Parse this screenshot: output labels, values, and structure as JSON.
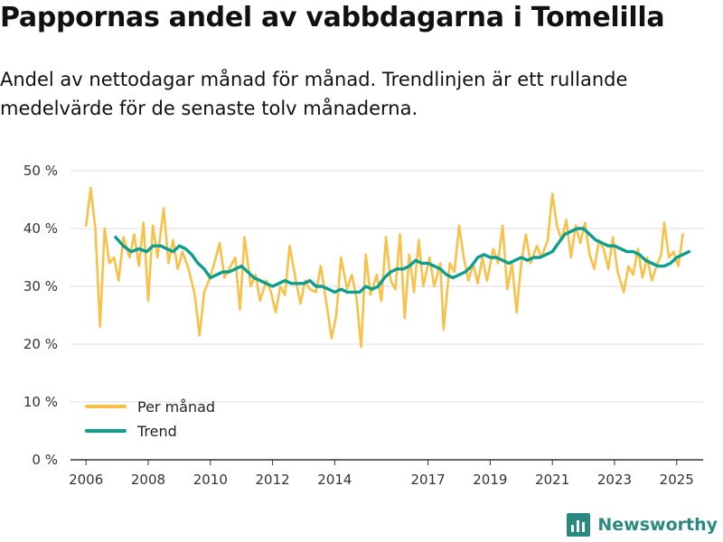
{
  "title": "Pappornas andel av vabbdagarna i Tomelilla",
  "subtitle": "Andel av nettodagar månad för månad. Trendlinjen är ett rullande medelvärde för de senaste tolv månaderna.",
  "brand": {
    "name": "Newsworthy",
    "icon": "bar-chart-logo-icon"
  },
  "colors": {
    "monthly": "#f8c14a",
    "trend": "#0e9e8e",
    "grid": "#dddddd",
    "axis": "#333333",
    "brand": "#2a8a80"
  },
  "chart_data": {
    "type": "line",
    "title": "Pappornas andel av vabbdagarna i Tomelilla",
    "xlabel": "",
    "ylabel": "",
    "xlim": [
      2005.5,
      2025.85
    ],
    "ylim": [
      0,
      50
    ],
    "x_ticks": [
      2006,
      2008,
      2010,
      2012,
      2014,
      2017,
      2019,
      2021,
      2023,
      2025
    ],
    "x_tick_labels": [
      "2006",
      "2008",
      "2010",
      "2012",
      "2014",
      "2017",
      "2019",
      "2021",
      "2023",
      "2025"
    ],
    "y_ticks": [
      0,
      10,
      20,
      30,
      40,
      50
    ],
    "y_tick_labels": [
      "0 %",
      "10 %",
      "20 %",
      "30 %",
      "40 %",
      "50 %"
    ],
    "legend_position": "bottom-left",
    "series": [
      {
        "name": "Per månad",
        "color": "#f8c14a",
        "points": [
          [
            2006.0,
            40.5
          ],
          [
            2006.15,
            47.0
          ],
          [
            2006.3,
            40.0
          ],
          [
            2006.45,
            23.0
          ],
          [
            2006.6,
            40.0
          ],
          [
            2006.75,
            34.0
          ],
          [
            2006.9,
            35.0
          ],
          [
            2007.05,
            31.0
          ],
          [
            2007.2,
            38.5
          ],
          [
            2007.4,
            35.0
          ],
          [
            2007.55,
            39.0
          ],
          [
            2007.7,
            33.5
          ],
          [
            2007.85,
            41.0
          ],
          [
            2008.0,
            27.5
          ],
          [
            2008.15,
            40.5
          ],
          [
            2008.3,
            35.0
          ],
          [
            2008.5,
            43.5
          ],
          [
            2008.65,
            34.0
          ],
          [
            2008.8,
            38.0
          ],
          [
            2008.95,
            33.0
          ],
          [
            2009.1,
            36.0
          ],
          [
            2009.3,
            33.0
          ],
          [
            2009.5,
            28.5
          ],
          [
            2009.65,
            21.5
          ],
          [
            2009.8,
            29.0
          ],
          [
            2009.95,
            31.0
          ],
          [
            2010.1,
            33.5
          ],
          [
            2010.3,
            37.5
          ],
          [
            2010.45,
            31.5
          ],
          [
            2010.6,
            33.0
          ],
          [
            2010.8,
            35.0
          ],
          [
            2010.95,
            26.0
          ],
          [
            2011.1,
            38.5
          ],
          [
            2011.3,
            30.0
          ],
          [
            2011.45,
            32.0
          ],
          [
            2011.6,
            27.5
          ],
          [
            2011.8,
            31.0
          ],
          [
            2011.95,
            29.0
          ],
          [
            2012.1,
            25.5
          ],
          [
            2012.25,
            30.0
          ],
          [
            2012.4,
            28.5
          ],
          [
            2012.55,
            37.0
          ],
          [
            2012.75,
            31.0
          ],
          [
            2012.9,
            27.0
          ],
          [
            2013.05,
            31.0
          ],
          [
            2013.2,
            29.5
          ],
          [
            2013.4,
            29.0
          ],
          [
            2013.55,
            33.5
          ],
          [
            2013.75,
            26.5
          ],
          [
            2013.9,
            21.0
          ],
          [
            2014.05,
            25.0
          ],
          [
            2014.2,
            35.0
          ],
          [
            2014.4,
            29.5
          ],
          [
            2014.55,
            32.0
          ],
          [
            2014.7,
            28.0
          ],
          [
            2014.85,
            19.5
          ],
          [
            2015.0,
            35.5
          ],
          [
            2015.15,
            28.5
          ],
          [
            2015.35,
            32.0
          ],
          [
            2015.5,
            27.5
          ],
          [
            2015.65,
            38.5
          ],
          [
            2015.8,
            31.0
          ],
          [
            2015.95,
            29.5
          ],
          [
            2016.1,
            39.0
          ],
          [
            2016.25,
            24.5
          ],
          [
            2016.4,
            35.5
          ],
          [
            2016.55,
            29.0
          ],
          [
            2016.7,
            38.0
          ],
          [
            2016.85,
            30.0
          ],
          [
            2017.05,
            35.0
          ],
          [
            2017.2,
            30.0
          ],
          [
            2017.4,
            34.0
          ],
          [
            2017.5,
            22.5
          ],
          [
            2017.7,
            34.0
          ],
          [
            2017.85,
            32.5
          ],
          [
            2018.0,
            40.5
          ],
          [
            2018.15,
            35.0
          ],
          [
            2018.3,
            31.0
          ],
          [
            2018.45,
            34.0
          ],
          [
            2018.6,
            30.5
          ],
          [
            2018.75,
            35.0
          ],
          [
            2018.9,
            31.0
          ],
          [
            2019.1,
            36.5
          ],
          [
            2019.25,
            34.0
          ],
          [
            2019.4,
            40.5
          ],
          [
            2019.55,
            29.5
          ],
          [
            2019.7,
            34.0
          ],
          [
            2019.85,
            25.5
          ],
          [
            2020.0,
            34.0
          ],
          [
            2020.15,
            39.0
          ],
          [
            2020.3,
            34.0
          ],
          [
            2020.5,
            37.0
          ],
          [
            2020.65,
            35.0
          ],
          [
            2020.85,
            38.0
          ],
          [
            2021.0,
            46.0
          ],
          [
            2021.15,
            40.5
          ],
          [
            2021.3,
            38.0
          ],
          [
            2021.45,
            41.5
          ],
          [
            2021.6,
            35.0
          ],
          [
            2021.75,
            40.5
          ],
          [
            2021.9,
            37.5
          ],
          [
            2022.05,
            41.0
          ],
          [
            2022.2,
            35.5
          ],
          [
            2022.35,
            33.0
          ],
          [
            2022.5,
            38.0
          ],
          [
            2022.65,
            36.5
          ],
          [
            2022.8,
            33.0
          ],
          [
            2022.95,
            38.5
          ],
          [
            2023.1,
            32.5
          ],
          [
            2023.3,
            29.0
          ],
          [
            2023.45,
            33.5
          ],
          [
            2023.6,
            32.0
          ],
          [
            2023.75,
            36.5
          ],
          [
            2023.9,
            31.5
          ],
          [
            2024.05,
            35.0
          ],
          [
            2024.2,
            31.0
          ],
          [
            2024.35,
            33.5
          ],
          [
            2024.5,
            35.5
          ],
          [
            2024.6,
            41.0
          ],
          [
            2024.75,
            35.0
          ],
          [
            2024.9,
            36.0
          ],
          [
            2025.05,
            33.5
          ],
          [
            2025.2,
            39.0
          ]
        ]
      },
      {
        "name": "Trend",
        "color": "#0e9e8e",
        "points": [
          [
            2006.95,
            38.5
          ],
          [
            2007.2,
            37.0
          ],
          [
            2007.45,
            36.0
          ],
          [
            2007.7,
            36.5
          ],
          [
            2007.95,
            36.0
          ],
          [
            2008.15,
            37.0
          ],
          [
            2008.4,
            37.0
          ],
          [
            2008.6,
            36.5
          ],
          [
            2008.8,
            36.0
          ],
          [
            2009.0,
            37.0
          ],
          [
            2009.2,
            36.5
          ],
          [
            2009.4,
            35.5
          ],
          [
            2009.6,
            34.0
          ],
          [
            2009.8,
            33.0
          ],
          [
            2010.0,
            31.5
          ],
          [
            2010.2,
            32.0
          ],
          [
            2010.4,
            32.5
          ],
          [
            2010.6,
            32.5
          ],
          [
            2010.8,
            33.0
          ],
          [
            2011.0,
            33.5
          ],
          [
            2011.2,
            32.5
          ],
          [
            2011.4,
            31.5
          ],
          [
            2011.6,
            31.0
          ],
          [
            2011.8,
            30.5
          ],
          [
            2012.0,
            30.0
          ],
          [
            2012.2,
            30.5
          ],
          [
            2012.4,
            31.0
          ],
          [
            2012.6,
            30.5
          ],
          [
            2012.8,
            30.5
          ],
          [
            2013.0,
            30.5
          ],
          [
            2013.2,
            31.0
          ],
          [
            2013.4,
            30.0
          ],
          [
            2013.6,
            30.0
          ],
          [
            2013.8,
            29.5
          ],
          [
            2014.0,
            29.0
          ],
          [
            2014.2,
            29.5
          ],
          [
            2014.4,
            29.0
          ],
          [
            2014.6,
            29.0
          ],
          [
            2014.8,
            29.0
          ],
          [
            2015.0,
            30.0
          ],
          [
            2015.2,
            29.5
          ],
          [
            2015.4,
            30.0
          ],
          [
            2015.6,
            31.5
          ],
          [
            2015.8,
            32.5
          ],
          [
            2016.0,
            33.0
          ],
          [
            2016.2,
            33.0
          ],
          [
            2016.4,
            33.5
          ],
          [
            2016.6,
            34.5
          ],
          [
            2016.8,
            34.0
          ],
          [
            2017.0,
            34.0
          ],
          [
            2017.2,
            33.5
          ],
          [
            2017.4,
            33.0
          ],
          [
            2017.6,
            32.0
          ],
          [
            2017.8,
            31.5
          ],
          [
            2018.0,
            32.0
          ],
          [
            2018.2,
            32.5
          ],
          [
            2018.4,
            33.5
          ],
          [
            2018.6,
            35.0
          ],
          [
            2018.8,
            35.5
          ],
          [
            2019.0,
            35.0
          ],
          [
            2019.2,
            35.0
          ],
          [
            2019.4,
            34.5
          ],
          [
            2019.6,
            34.0
          ],
          [
            2019.8,
            34.5
          ],
          [
            2020.0,
            35.0
          ],
          [
            2020.2,
            34.5
          ],
          [
            2020.4,
            35.0
          ],
          [
            2020.6,
            35.0
          ],
          [
            2020.8,
            35.5
          ],
          [
            2021.0,
            36.0
          ],
          [
            2021.2,
            37.5
          ],
          [
            2021.4,
            39.0
          ],
          [
            2021.6,
            39.5
          ],
          [
            2021.8,
            40.0
          ],
          [
            2022.0,
            40.0
          ],
          [
            2022.2,
            39.0
          ],
          [
            2022.4,
            38.0
          ],
          [
            2022.6,
            37.5
          ],
          [
            2022.8,
            37.0
          ],
          [
            2023.0,
            37.0
          ],
          [
            2023.2,
            36.5
          ],
          [
            2023.4,
            36.0
          ],
          [
            2023.6,
            36.0
          ],
          [
            2023.8,
            35.5
          ],
          [
            2024.0,
            34.5
          ],
          [
            2024.2,
            34.0
          ],
          [
            2024.4,
            33.5
          ],
          [
            2024.6,
            33.5
          ],
          [
            2024.8,
            34.0
          ],
          [
            2025.0,
            35.0
          ],
          [
            2025.2,
            35.5
          ],
          [
            2025.4,
            36.0
          ]
        ]
      }
    ]
  }
}
